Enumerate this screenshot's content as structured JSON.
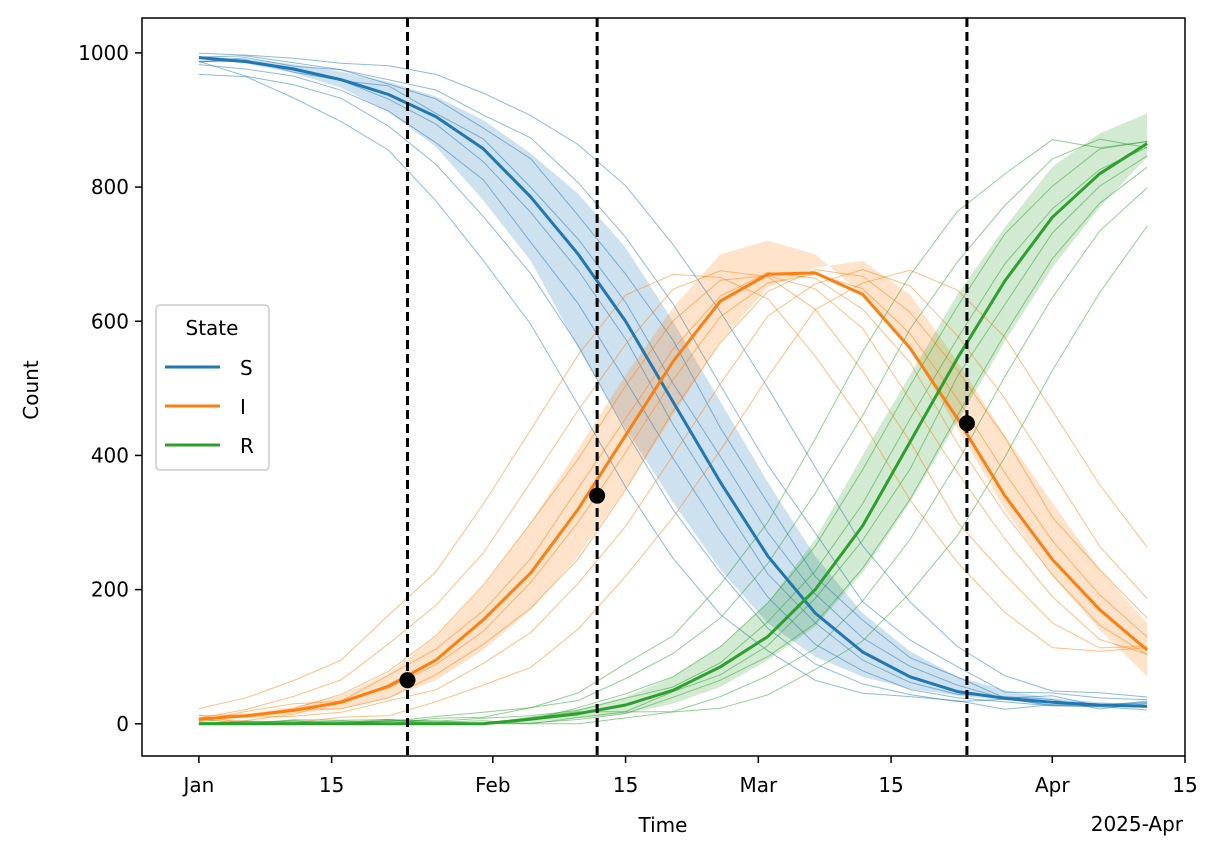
{
  "chart_data": {
    "type": "line",
    "xlabel": "Time",
    "ylabel": "Count",
    "x_offset_label": "2025-Apr",
    "x_tick_labels": [
      {
        "date": "2025-01-01",
        "label": "Jan"
      },
      {
        "date": "2025-01-15",
        "label": "15"
      },
      {
        "date": "2025-02-01",
        "label": "Feb"
      },
      {
        "date": "2025-02-15",
        "label": "15"
      },
      {
        "date": "2025-03-01",
        "label": "Mar"
      },
      {
        "date": "2025-03-15",
        "label": "15"
      },
      {
        "date": "2025-04-01",
        "label": "Apr"
      },
      {
        "date": "2025-04-15",
        "label": "15"
      }
    ],
    "y_ticks": [
      0,
      200,
      400,
      600,
      800,
      1000
    ],
    "xlim": [
      "2024-12-26",
      "2025-04-15"
    ],
    "ylim": [
      -48,
      1052
    ],
    "grid": false,
    "legend": {
      "title": "State",
      "position": "center-left",
      "entries": [
        "S",
        "I",
        "R"
      ]
    },
    "colors": {
      "S": "#1f77b4",
      "I": "#ff7f0e",
      "R": "#2ca02c",
      "markers": "#000000"
    },
    "x": [
      "2025-01-01",
      "2025-01-06",
      "2025-01-11",
      "2025-01-16",
      "2025-01-21",
      "2025-01-26",
      "2025-01-31",
      "2025-02-05",
      "2025-02-10",
      "2025-02-15",
      "2025-02-20",
      "2025-02-25",
      "2025-03-02",
      "2025-03-07",
      "2025-03-12",
      "2025-03-17",
      "2025-03-22",
      "2025-03-27",
      "2025-04-01",
      "2025-04-06",
      "2025-04-11"
    ],
    "series": [
      {
        "name": "S",
        "values": [
          993,
          987,
          976,
          960,
          938,
          905,
          857,
          785,
          700,
          600,
          480,
          360,
          250,
          165,
          107,
          70,
          48,
          38,
          32,
          28,
          26
        ],
        "band_low": [
          991,
          984,
          970,
          948,
          912,
          860,
          780,
          690,
          560,
          440,
          330,
          230,
          150,
          100,
          70,
          52,
          42,
          35,
          30,
          27,
          25
        ],
        "band_high": [
          995,
          991,
          983,
          972,
          957,
          935,
          900,
          850,
          790,
          710,
          600,
          480,
          360,
          250,
          165,
          108,
          70,
          50,
          38,
          32,
          29
        ]
      },
      {
        "name": "I",
        "values": [
          7,
          12,
          20,
          32,
          56,
          95,
          155,
          225,
          320,
          430,
          540,
          630,
          670,
          672,
          640,
          560,
          455,
          340,
          245,
          170,
          110
        ],
        "band_low": [
          5,
          9,
          15,
          22,
          38,
          65,
          110,
          170,
          250,
          350,
          460,
          570,
          650,
          680,
          690,
          640,
          540,
          430,
          330,
          230,
          150
        ],
        "band_high": [
          9,
          15,
          25,
          42,
          75,
          130,
          205,
          300,
          410,
          520,
          620,
          700,
          720,
          700,
          640,
          560,
          440,
          320,
          220,
          140,
          70
        ]
      },
      {
        "name": "R",
        "values": [
          0,
          0,
          0,
          0,
          0,
          0,
          0,
          7,
          15,
          28,
          50,
          85,
          130,
          200,
          295,
          420,
          545,
          660,
          755,
          820,
          865
        ],
        "band_low": [
          0,
          0,
          0,
          0,
          0,
          0,
          0,
          3,
          8,
          15,
          30,
          55,
          95,
          145,
          225,
          330,
          450,
          570,
          680,
          770,
          845
        ],
        "band_high": [
          0,
          0,
          0,
          0,
          0,
          0,
          0,
          10,
          22,
          40,
          70,
          115,
          180,
          275,
          400,
          520,
          640,
          740,
          830,
          880,
          910
        ]
      }
    ],
    "vertical_lines": [
      "2025-01-23",
      "2025-02-12",
      "2025-03-23"
    ],
    "markers": [
      {
        "x": "2025-01-23",
        "y": 65,
        "series": "I"
      },
      {
        "x": "2025-02-12",
        "y": 340,
        "series": "I"
      },
      {
        "x": "2025-03-23",
        "y": 448,
        "series": "I"
      }
    ]
  }
}
